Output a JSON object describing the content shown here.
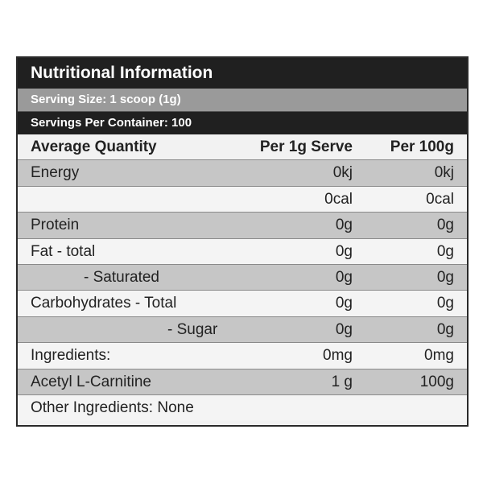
{
  "panel": {
    "title": "Nutritional Information",
    "serving_size": "Serving Size: 1 scoop (1g)",
    "servings_per_container": "Servings Per Container: 100"
  },
  "table": {
    "headers": {
      "quantity": "Average Quantity",
      "per_serve": "Per 1g Serve",
      "per_100g": "Per 100g"
    },
    "rows": [
      {
        "label": "Energy",
        "per_serve": "0kj",
        "per_100g": "0kj"
      },
      {
        "label": "",
        "per_serve": "0cal",
        "per_100g": "0cal"
      },
      {
        "label": "Protein",
        "per_serve": "0g",
        "per_100g": "0g"
      },
      {
        "label": "Fat - total",
        "per_serve": "0g",
        "per_100g": "0g"
      },
      {
        "label": "- Saturated",
        "per_serve": "0g",
        "per_100g": "0g"
      },
      {
        "label": "Carbohydrates - Total",
        "per_serve": "0g",
        "per_100g": "0g"
      },
      {
        "label": "- Sugar",
        "per_serve": "0g",
        "per_100g": "0g"
      },
      {
        "label": "Ingredients:",
        "per_serve": "0mg",
        "per_100g": "0mg"
      },
      {
        "label": "Acetyl L-Carnitine",
        "per_serve": "1 g",
        "per_100g": "100g"
      },
      {
        "label": "Other Ingredients: None",
        "per_serve": "",
        "per_100g": ""
      }
    ]
  },
  "colors": {
    "header_dark": "#202020",
    "header_grey": "#9a9a9a",
    "row_shade": "#c6c6c6",
    "row_plain": "#f4f4f4"
  }
}
